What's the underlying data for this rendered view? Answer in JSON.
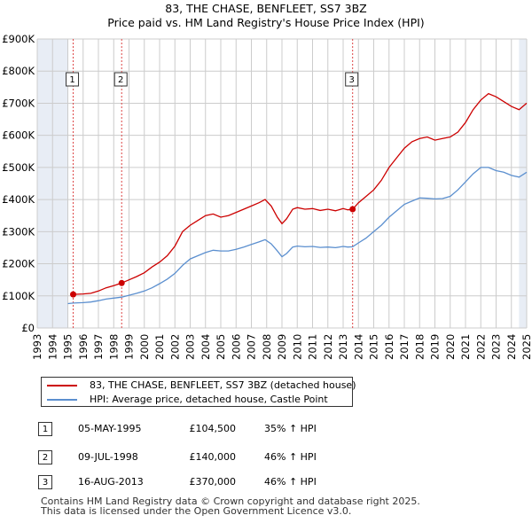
{
  "title_line1": "83, THE CHASE, BENFLEET, SS7 3BZ",
  "title_line2": "Price paid vs. HM Land Registry's House Price Index (HPI)",
  "colors": {
    "property": "#cc0000",
    "hpi": "#5b8fcf",
    "grid": "#cccccc",
    "shade": "#e8edf5",
    "vline": "#dd4444"
  },
  "chart_data": {
    "type": "line",
    "title": "Price paid vs. HM Land Registry's House Price Index (HPI)",
    "xlim": [
      1993,
      2025
    ],
    "ylim": [
      0,
      900000
    ],
    "x_ticks": [
      1993,
      1994,
      1995,
      1996,
      1997,
      1998,
      1999,
      2000,
      2001,
      2002,
      2003,
      2004,
      2005,
      2006,
      2007,
      2008,
      2009,
      2010,
      2011,
      2012,
      2013,
      2014,
      2015,
      2016,
      2017,
      2018,
      2019,
      2020,
      2021,
      2022,
      2023,
      2024,
      2025
    ],
    "x_tick_labels": [
      "1993",
      "1994",
      "1995",
      "1996",
      "1997",
      "1998",
      "1999",
      "2000",
      "2001",
      "2002",
      "2003",
      "2004",
      "2005",
      "2006",
      "2007",
      "2008",
      "2009",
      "2010",
      "2011",
      "2012",
      "2013",
      "2014",
      "2015",
      "2016",
      "2017",
      "2018",
      "2019",
      "2020",
      "2021",
      "2022",
      "2023",
      "2024",
      "2025"
    ],
    "y_ticks": [
      0,
      100000,
      200000,
      300000,
      400000,
      500000,
      600000,
      700000,
      800000,
      900000
    ],
    "y_tick_labels": [
      "£0",
      "£100K",
      "£200K",
      "£300K",
      "£400K",
      "£500K",
      "£600K",
      "£700K",
      "£800K",
      "£900K"
    ],
    "series": [
      {
        "name": "83, THE CHASE, BENFLEET, SS7 3BZ (detached house)",
        "x": [
          1995.35,
          1996,
          1996.5,
          1997,
          1997.5,
          1998,
          1998.52,
          1999,
          1999.5,
          2000,
          2000.5,
          2001,
          2001.5,
          2002,
          2002.5,
          2003,
          2003.5,
          2004,
          2004.5,
          2005,
          2005.5,
          2006,
          2006.5,
          2007,
          2007.5,
          2007.9,
          2008.3,
          2008.7,
          2009,
          2009.3,
          2009.7,
          2010,
          2010.5,
          2011,
          2011.5,
          2012,
          2012.5,
          2013,
          2013.3,
          2013.62,
          2014,
          2014.5,
          2015,
          2015.5,
          2016,
          2016.5,
          2017,
          2017.5,
          2018,
          2018.5,
          2019,
          2019.5,
          2020,
          2020.5,
          2021,
          2021.5,
          2022,
          2022.5,
          2023,
          2023.5,
          2024,
          2024.5,
          2025
        ],
        "values": [
          104500,
          106000,
          108000,
          115000,
          125000,
          132000,
          140000,
          150000,
          160000,
          172000,
          190000,
          205000,
          225000,
          255000,
          300000,
          320000,
          335000,
          350000,
          355000,
          345000,
          350000,
          360000,
          370000,
          380000,
          390000,
          400000,
          380000,
          345000,
          325000,
          340000,
          370000,
          375000,
          370000,
          372000,
          366000,
          370000,
          365000,
          372000,
          368000,
          370000,
          390000,
          410000,
          430000,
          460000,
          500000,
          530000,
          560000,
          580000,
          590000,
          595000,
          585000,
          590000,
          595000,
          610000,
          640000,
          680000,
          710000,
          730000,
          720000,
          705000,
          690000,
          680000,
          700000
        ]
      },
      {
        "name": "HPI: Average price, detached house, Castle Point",
        "x": [
          1995,
          1995.35,
          1996,
          1996.5,
          1997,
          1997.5,
          1998,
          1998.52,
          1999,
          1999.5,
          2000,
          2000.5,
          2001,
          2001.5,
          2002,
          2002.5,
          2003,
          2003.5,
          2004,
          2004.5,
          2005,
          2005.5,
          2006,
          2006.5,
          2007,
          2007.5,
          2007.9,
          2008.3,
          2008.7,
          2009,
          2009.3,
          2009.7,
          2010,
          2010.5,
          2011,
          2011.5,
          2012,
          2012.5,
          2013,
          2013.3,
          2013.62,
          2014,
          2014.5,
          2015,
          2015.5,
          2016,
          2016.5,
          2017,
          2017.5,
          2018,
          2018.5,
          2019,
          2019.5,
          2020,
          2020.5,
          2021,
          2021.5,
          2022,
          2022.5,
          2023,
          2023.5,
          2024,
          2024.5,
          2025
        ],
        "values": [
          76000,
          77500,
          79000,
          81000,
          85000,
          90000,
          93000,
          96000,
          102000,
          108000,
          115000,
          125000,
          138000,
          152000,
          170000,
          195000,
          215000,
          225000,
          235000,
          242000,
          240000,
          240000,
          245000,
          252000,
          260000,
          268000,
          275000,
          262000,
          240000,
          222000,
          232000,
          252000,
          255000,
          253000,
          254000,
          251000,
          252000,
          250000,
          254000,
          252000,
          253000,
          265000,
          280000,
          300000,
          320000,
          345000,
          365000,
          385000,
          395000,
          405000,
          404000,
          402000,
          403000,
          410000,
          430000,
          455000,
          480000,
          500000,
          500000,
          490000,
          485000,
          475000,
          470000,
          485000
        ]
      }
    ],
    "sale_markers": [
      {
        "label": "1",
        "x": 1995.35,
        "value": 104500
      },
      {
        "label": "2",
        "x": 1998.52,
        "value": 140000
      },
      {
        "label": "3",
        "x": 2013.62,
        "value": 370000
      }
    ]
  },
  "legend": {
    "property_label": "83, THE CHASE, BENFLEET, SS7 3BZ (detached house)",
    "hpi_label": "HPI: Average price, detached house, Castle Point"
  },
  "sales": [
    {
      "num": "1",
      "date": "05-MAY-1995",
      "price": "£104,500",
      "hpi": "35% ↑ HPI"
    },
    {
      "num": "2",
      "date": "09-JUL-1998",
      "price": "£140,000",
      "hpi": "46% ↑ HPI"
    },
    {
      "num": "3",
      "date": "16-AUG-2013",
      "price": "£370,000",
      "hpi": "46% ↑ HPI"
    }
  ],
  "footer": {
    "line1": "Contains HM Land Registry data © Crown copyright and database right 2025.",
    "line2": "This data is licensed under the Open Government Licence v3.0."
  }
}
